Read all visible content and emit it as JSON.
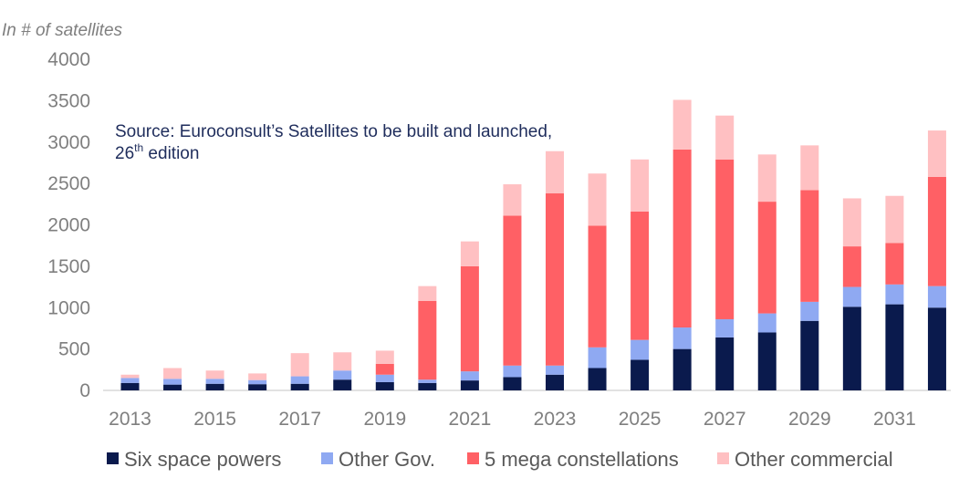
{
  "chart_data": {
    "type": "bar",
    "stacked": true,
    "unit_label": "In # of satellites",
    "source_line1": "Source: Euroconsult’s Satellites to be built and launched,",
    "source_line2_main": "26",
    "source_line2_sup": "th",
    "source_line2_rest": " edition",
    "ylim": [
      0,
      4000
    ],
    "y_ticks": [
      "0",
      "500",
      "1000",
      "1500",
      "2000",
      "2500",
      "3000",
      "3500",
      "4000"
    ],
    "categories": [
      "2013",
      "2014",
      "2015",
      "2016",
      "2017",
      "2018",
      "2019",
      "2020",
      "2021",
      "2022",
      "2023",
      "2024",
      "2025",
      "2026",
      "2027",
      "2028",
      "2029",
      "2030",
      "2031",
      "2032"
    ],
    "x_tick_labels": [
      "2013",
      "",
      "2015",
      "",
      "2017",
      "",
      "2019",
      "",
      "2021",
      "",
      "2023",
      "",
      "2025",
      "",
      "2027",
      "",
      "2029",
      "",
      "2031",
      ""
    ],
    "legend_position": "bottom",
    "series": [
      {
        "name": "Six space powers",
        "color": "#0a1a4d",
        "values": [
          90,
          70,
          80,
          75,
          80,
          130,
          100,
          90,
          120,
          160,
          190,
          270,
          370,
          500,
          640,
          700,
          840,
          1010,
          1040,
          1000
        ]
      },
      {
        "name": "Other Gov.",
        "color": "#8fa9f2",
        "values": [
          60,
          70,
          60,
          50,
          90,
          110,
          90,
          40,
          110,
          140,
          110,
          250,
          240,
          260,
          220,
          230,
          230,
          240,
          240,
          260
        ]
      },
      {
        "name": "5 mega constellations",
        "color": "#ff6065",
        "values": [
          0,
          0,
          0,
          0,
          0,
          0,
          130,
          950,
          1270,
          1810,
          2080,
          1470,
          1550,
          2150,
          1930,
          1350,
          1350,
          490,
          500,
          1320
        ]
      },
      {
        "name": "Other commercial",
        "color": "#ffc0c2",
        "values": [
          40,
          130,
          100,
          80,
          280,
          220,
          160,
          180,
          300,
          380,
          510,
          630,
          630,
          600,
          530,
          570,
          540,
          580,
          570,
          560
        ]
      }
    ]
  }
}
